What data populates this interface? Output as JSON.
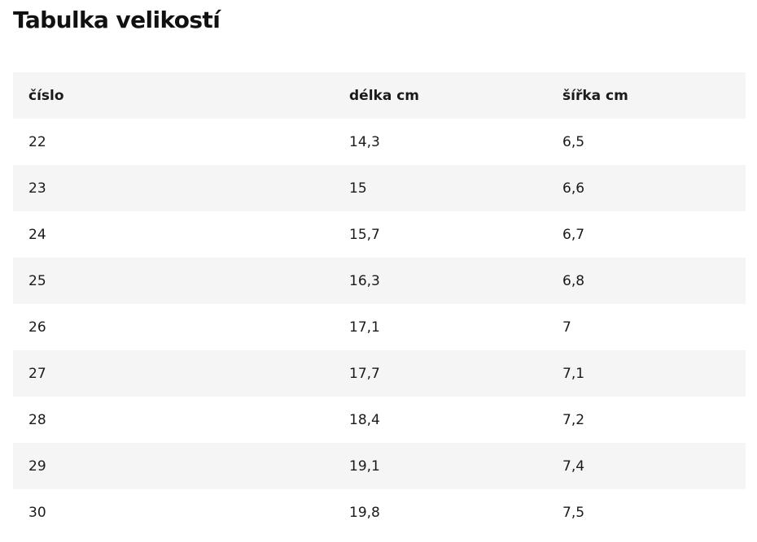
{
  "title": "Tabulka velikostí",
  "table": {
    "headers": [
      "číslo",
      "délka cm",
      "šířka cm"
    ],
    "rows": [
      [
        "22",
        "14,3",
        "6,5"
      ],
      [
        "23",
        "15",
        "6,6"
      ],
      [
        "24",
        "15,7",
        "6,7"
      ],
      [
        "25",
        "16,3",
        "6,8"
      ],
      [
        "26",
        "17,1",
        "7"
      ],
      [
        "27",
        "17,7",
        "7,1"
      ],
      [
        "28",
        "18,4",
        "7,2"
      ],
      [
        "29",
        "19,1",
        "7,4"
      ],
      [
        "30",
        "19,8",
        "7,5"
      ]
    ]
  },
  "colors": {
    "stripe": "#f5f5f5",
    "text": "#1a1a1a"
  }
}
